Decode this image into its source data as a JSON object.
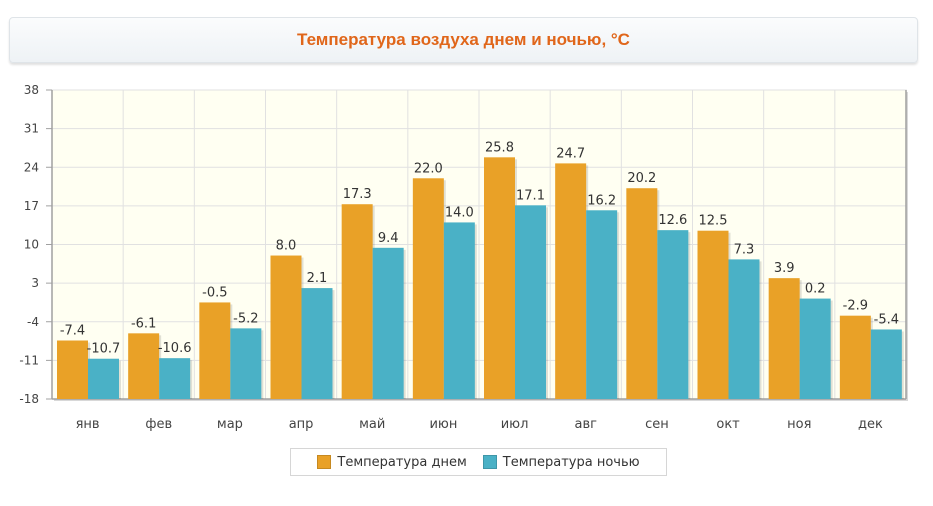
{
  "title": "Температура воздуха днем и ночью, °C",
  "colors": {
    "day": "#e9a127",
    "night": "#4ab1c6",
    "title": "#e0661a"
  },
  "legend": {
    "day": "Температура днем",
    "night": "Температура ночью"
  },
  "chart_data": {
    "type": "bar",
    "title": "Температура воздуха днем и ночью, °C",
    "categories": [
      "янв",
      "фев",
      "мар",
      "апр",
      "май",
      "июн",
      "июл",
      "авг",
      "сен",
      "окт",
      "ноя",
      "дек"
    ],
    "series": [
      {
        "name": "Температура днем",
        "values": [
          -7.4,
          -6.1,
          -0.5,
          8.0,
          17.3,
          22.0,
          25.8,
          24.7,
          20.2,
          12.5,
          3.9,
          -2.9
        ]
      },
      {
        "name": "Температура ночью",
        "values": [
          -10.7,
          -10.6,
          -5.2,
          2.1,
          9.4,
          14.0,
          17.1,
          16.2,
          12.6,
          7.3,
          0.2,
          -5.4
        ]
      }
    ],
    "ylim": [
      -18,
      38
    ],
    "yticks": [
      -18,
      -11,
      -4,
      3,
      10,
      17,
      24,
      31,
      38
    ],
    "grid": true,
    "legend_position": "bottom-center"
  }
}
